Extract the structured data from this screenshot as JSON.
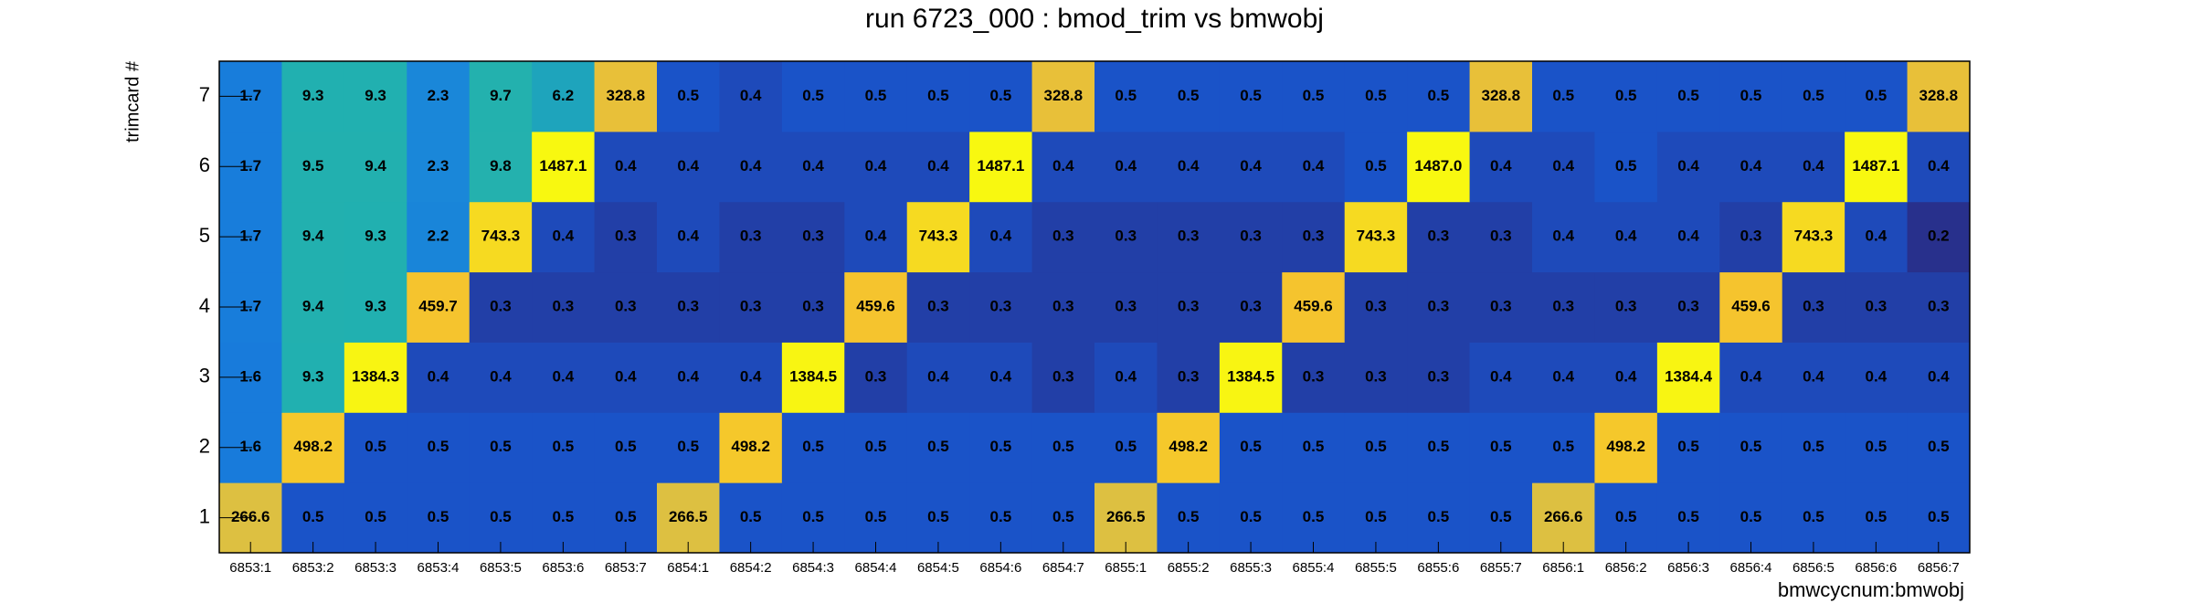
{
  "chart_data": {
    "type": "heatmap",
    "title": "run 6723_000 : bmod_trim vs bmwobj",
    "x_label": "bmwcycnum:bmwobj",
    "y_label": "trimcard #",
    "z_log": true,
    "colorscale": [
      "#28308c",
      "#1560e0",
      "#1a8ad8",
      "#20b0b0",
      "#60bc90",
      "#b0c060",
      "#f5c030",
      "#f8f810"
    ],
    "x_categories": [
      "6853:1",
      "6853:2",
      "6853:3",
      "6853:4",
      "6853:5",
      "6853:6",
      "6853:7",
      "6854:1",
      "6854:2",
      "6854:3",
      "6854:4",
      "6854:5",
      "6854:6",
      "6854:7",
      "6855:1",
      "6855:2",
      "6855:3",
      "6855:4",
      "6855:5",
      "6855:6",
      "6855:7",
      "6856:1",
      "6856:2",
      "6856:3",
      "6856:4",
      "6856:5",
      "6856:6",
      "6856:7"
    ],
    "y_categories": [
      "1",
      "2",
      "3",
      "4",
      "5",
      "6",
      "7"
    ],
    "values": [
      [
        266.6,
        0.5,
        0.5,
        0.5,
        0.5,
        0.5,
        0.5,
        266.5,
        0.5,
        0.5,
        0.5,
        0.5,
        0.5,
        0.5,
        266.5,
        0.5,
        0.5,
        0.5,
        0.5,
        0.5,
        0.5,
        266.6,
        0.5,
        0.5,
        0.5,
        0.5,
        0.5,
        0.5
      ],
      [
        1.6,
        498.2,
        0.5,
        0.5,
        0.5,
        0.5,
        0.5,
        0.5,
        498.2,
        0.5,
        0.5,
        0.5,
        0.5,
        0.5,
        0.5,
        498.2,
        0.5,
        0.5,
        0.5,
        0.5,
        0.5,
        0.5,
        498.2,
        0.5,
        0.5,
        0.5,
        0.5,
        0.5
      ],
      [
        1.6,
        9.3,
        1384.3,
        0.4,
        0.4,
        0.4,
        0.4,
        0.4,
        0.4,
        1384.5,
        0.3,
        0.4,
        0.4,
        0.3,
        0.4,
        0.3,
        1384.5,
        0.3,
        0.3,
        0.3,
        0.4,
        0.4,
        0.4,
        1384.4,
        0.4,
        0.4,
        0.4,
        0.4
      ],
      [
        1.7,
        9.4,
        9.3,
        459.7,
        0.3,
        0.3,
        0.3,
        0.3,
        0.3,
        0.3,
        459.6,
        0.3,
        0.3,
        0.3,
        0.3,
        0.3,
        0.3,
        459.6,
        0.3,
        0.3,
        0.3,
        0.3,
        0.3,
        0.3,
        459.6,
        0.3,
        0.3,
        0.3
      ],
      [
        1.7,
        9.4,
        9.3,
        2.2,
        743.3,
        0.4,
        0.3,
        0.4,
        0.3,
        0.3,
        0.4,
        743.3,
        0.4,
        0.3,
        0.3,
        0.3,
        0.3,
        0.3,
        743.3,
        0.3,
        0.3,
        0.4,
        0.4,
        0.4,
        0.3,
        743.3,
        0.4,
        0.2
      ],
      [
        1.7,
        9.5,
        9.4,
        2.3,
        9.8,
        1487.1,
        0.4,
        0.4,
        0.4,
        0.4,
        0.4,
        0.4,
        1487.1,
        0.4,
        0.4,
        0.4,
        0.4,
        0.4,
        0.5,
        1487,
        0.4,
        0.4,
        0.5,
        0.4,
        0.4,
        0.4,
        1487.1,
        0.4
      ],
      [
        1.7,
        9.3,
        9.3,
        2.3,
        9.7,
        6.2,
        328.8,
        0.5,
        0.4,
        0.5,
        0.5,
        0.5,
        0.5,
        328.8,
        0.5,
        0.5,
        0.5,
        0.5,
        0.5,
        0.5,
        328.8,
        0.5,
        0.5,
        0.5,
        0.5,
        0.5,
        0.5,
        328.8
      ]
    ],
    "value_labels": [
      [
        "266.6",
        "0.5",
        "0.5",
        "0.5",
        "0.5",
        "0.5",
        "0.5",
        "266.5",
        "0.5",
        "0.5",
        "0.5",
        "0.5",
        "0.5",
        "0.5",
        "266.5",
        "0.5",
        "0.5",
        "0.5",
        "0.5",
        "0.5",
        "0.5",
        "266.6",
        "0.5",
        "0.5",
        "0.5",
        "0.5",
        "0.5",
        "0.5"
      ],
      [
        "1.6",
        "498.2",
        "0.5",
        "0.5",
        "0.5",
        "0.5",
        "0.5",
        "0.5",
        "498.2",
        "0.5",
        "0.5",
        "0.5",
        "0.5",
        "0.5",
        "0.5",
        "498.2",
        "0.5",
        "0.5",
        "0.5",
        "0.5",
        "0.5",
        "0.5",
        "498.2",
        "0.5",
        "0.5",
        "0.5",
        "0.5",
        "0.5"
      ],
      [
        "1.6",
        "9.3",
        "1384.3",
        "0.4",
        "0.4",
        "0.4",
        "0.4",
        "0.4",
        "0.4",
        "1384.5",
        "0.3",
        "0.4",
        "0.4",
        "0.3",
        "0.4",
        "0.3",
        "1384.5",
        "0.3",
        "0.3",
        "0.3",
        "0.4",
        "0.4",
        "0.4",
        "1384.4",
        "0.4",
        "0.4",
        "0.4",
        "0.4"
      ],
      [
        "1.7",
        "9.4",
        "9.3",
        "459.7",
        "0.3",
        "0.3",
        "0.3",
        "0.3",
        "0.3",
        "0.3",
        "459.6",
        "0.3",
        "0.3",
        "0.3",
        "0.3",
        "0.3",
        "0.3",
        "459.6",
        "0.3",
        "0.3",
        "0.3",
        "0.3",
        "0.3",
        "0.3",
        "459.6",
        "0.3",
        "0.3",
        "0.3"
      ],
      [
        "1.7",
        "9.4",
        "9.3",
        "2.2",
        "743.3",
        "0.4",
        "0.3",
        "0.4",
        "0.3",
        "0.3",
        "0.4",
        "743.3",
        "0.4",
        "0.3",
        "0.3",
        "0.3",
        "0.3",
        "0.3",
        "743.3",
        "0.3",
        "0.3",
        "0.4",
        "0.4",
        "0.4",
        "0.3",
        "743.3",
        "0.4",
        "0.2"
      ],
      [
        "1.7",
        "9.5",
        "9.4",
        "2.3",
        "9.8",
        "1487.1",
        "0.4",
        "0.4",
        "0.4",
        "0.4",
        "0.4",
        "0.4",
        "1487.1",
        "0.4",
        "0.4",
        "0.4",
        "0.4",
        "0.4",
        "0.5",
        "1487.0",
        "0.4",
        "0.4",
        "0.5",
        "0.4",
        "0.4",
        "0.4",
        "1487.1",
        "0.4"
      ],
      [
        "1.7",
        "9.3",
        "9.3",
        "2.3",
        "9.7",
        "6.2",
        "328.8",
        "0.5",
        "0.4",
        "0.5",
        "0.5",
        "0.5",
        "0.5",
        "328.8",
        "0.5",
        "0.5",
        "0.5",
        "0.5",
        "0.5",
        "0.5",
        "328.8",
        "0.5",
        "0.5",
        "0.5",
        "0.5",
        "0.5",
        "0.5",
        "328.8"
      ]
    ]
  }
}
